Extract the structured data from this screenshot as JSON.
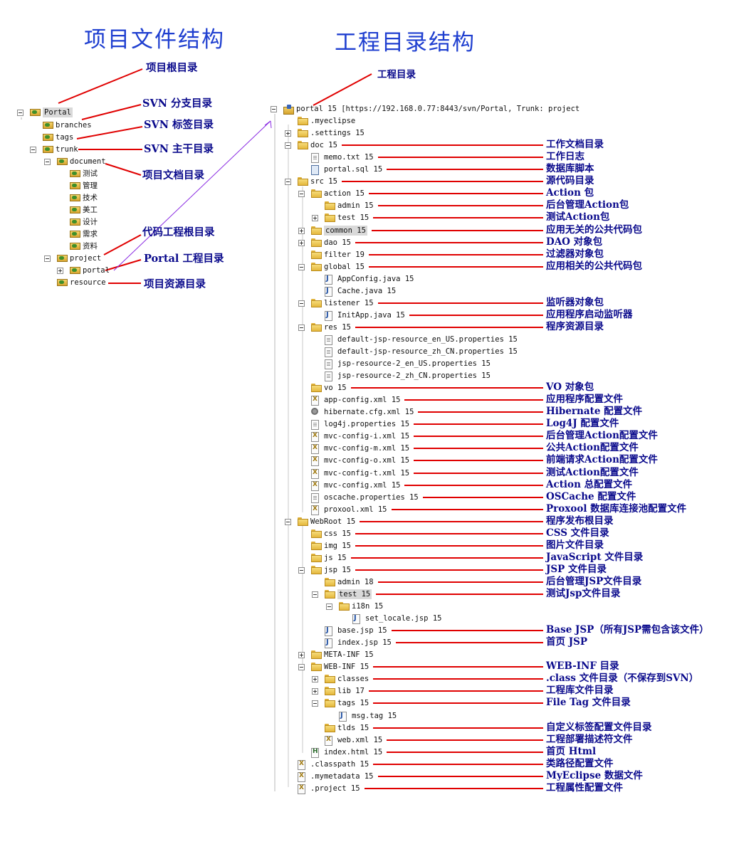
{
  "headings": {
    "left": "项目文件结构",
    "right": "工程目录结构"
  },
  "colors": {
    "heading": "#1f3fd0",
    "annotation": "#0a0a8c",
    "pointer_line": "#e00000",
    "purple_arrow": "#8a2be2"
  },
  "left_tree": {
    "nodes": [
      {
        "label": "Portal",
        "icon": "svn-folder-icon",
        "toggle": "minus",
        "highlight": true
      },
      {
        "label": "branches",
        "icon": "svn-folder-icon"
      },
      {
        "label": "tags",
        "icon": "svn-folder-icon"
      },
      {
        "label": "trunk",
        "icon": "svn-folder-icon",
        "toggle": "minus"
      },
      {
        "label": "document",
        "icon": "svn-folder-icon",
        "toggle": "minus"
      },
      {
        "label": "测试",
        "icon": "svn-folder-icon"
      },
      {
        "label": "管理",
        "icon": "svn-folder-icon"
      },
      {
        "label": "技术",
        "icon": "svn-folder-icon"
      },
      {
        "label": "美工",
        "icon": "svn-folder-icon"
      },
      {
        "label": "设计",
        "icon": "svn-folder-icon"
      },
      {
        "label": "需求",
        "icon": "svn-folder-icon"
      },
      {
        "label": "资料",
        "icon": "svn-folder-icon"
      },
      {
        "label": "project",
        "icon": "svn-folder-icon",
        "toggle": "minus"
      },
      {
        "label": "portal",
        "icon": "svn-folder-icon",
        "toggle": "plus"
      },
      {
        "label": "resource",
        "icon": "svn-folder-icon"
      }
    ],
    "annotations": [
      {
        "text": "项目根目录"
      },
      {
        "text": "SVN 分支目录"
      },
      {
        "text": "SVN 标签目录"
      },
      {
        "text": "SVN 主干目录"
      },
      {
        "text": "项目文档目录"
      },
      {
        "text": "代码工程根目录"
      },
      {
        "text": "Portal 工程目录"
      },
      {
        "text": "项目资源目录"
      }
    ]
  },
  "right_tree": {
    "top_annotation": "工程目录",
    "nodes": [
      {
        "label": "portal 15 [https://192.168.0.77:8443/svn/Portal, Trunk: project",
        "icon": "project-icon",
        "toggle": "minus"
      },
      {
        "label": ".myeclipse",
        "icon": "folder-icon"
      },
      {
        "label": ".settings 15",
        "icon": "folder-icon",
        "toggle": "plus"
      },
      {
        "label": "doc 15",
        "icon": "folder-icon",
        "toggle": "minus",
        "note": "工作文档目录"
      },
      {
        "label": "memo.txt 15",
        "icon": "file-icon",
        "note": "工作日志"
      },
      {
        "label": "portal.sql 15",
        "icon": "database-file-icon",
        "note": "数据库脚本"
      },
      {
        "label": "src 15",
        "icon": "source-folder-icon",
        "toggle": "minus",
        "note": "源代码目录"
      },
      {
        "label": "action 15",
        "icon": "folder-icon",
        "toggle": "minus",
        "note": "Action 包"
      },
      {
        "label": "admin 15",
        "icon": "folder-icon",
        "note": "后台管理Action包"
      },
      {
        "label": "test 15",
        "icon": "folder-icon",
        "toggle": "plus",
        "note": "测试Action包"
      },
      {
        "label": "common 15",
        "icon": "folder-icon",
        "toggle": "plus",
        "highlight": true,
        "note": "应用无关的公共代码包"
      },
      {
        "label": "dao 15",
        "icon": "folder-icon",
        "toggle": "plus",
        "note": "DAO 对象包"
      },
      {
        "label": "filter 19",
        "icon": "folder-icon",
        "note": "过滤器对象包"
      },
      {
        "label": "global 15",
        "icon": "folder-icon",
        "toggle": "minus",
        "note": "应用相关的公共代码包"
      },
      {
        "label": "AppConfig.java 15",
        "icon": "java-file-icon"
      },
      {
        "label": "Cache.java 15",
        "icon": "java-file-icon"
      },
      {
        "label": "listener 15",
        "icon": "folder-icon",
        "toggle": "minus",
        "note": "监听器对象包"
      },
      {
        "label": "InitApp.java 15",
        "icon": "java-file-icon",
        "note": "应用程序启动监听器"
      },
      {
        "label": "res 15",
        "icon": "folder-icon",
        "toggle": "minus",
        "note": "程序资源目录"
      },
      {
        "label": "default-jsp-resource_en_US.properties 15",
        "icon": "file-icon"
      },
      {
        "label": "default-jsp-resource_zh_CN.properties 15",
        "icon": "file-icon"
      },
      {
        "label": "jsp-resource-2_en_US.properties 15",
        "icon": "file-icon"
      },
      {
        "label": "jsp-resource-2_zh_CN.properties 15",
        "icon": "file-icon"
      },
      {
        "label": "vo 15",
        "icon": "folder-icon",
        "note": "VO 对象包"
      },
      {
        "label": "app-config.xml 15",
        "icon": "xml-file-icon",
        "note": "应用程序配置文件"
      },
      {
        "label": "hibernate.cfg.xml 15",
        "icon": "gear-file-icon",
        "note": "Hibernate 配置文件"
      },
      {
        "label": "log4j.properties 15",
        "icon": "file-icon",
        "note": "Log4J 配置文件"
      },
      {
        "label": "mvc-config-i.xml 15",
        "icon": "xml-file-icon",
        "note": "后台管理Action配置文件"
      },
      {
        "label": "mvc-config-m.xml 15",
        "icon": "xml-file-icon",
        "note": "公共Action配置文件"
      },
      {
        "label": "mvc-config-o.xml 15",
        "icon": "xml-file-icon",
        "note": "前端请求Action配置文件"
      },
      {
        "label": "mvc-config-t.xml 15",
        "icon": "xml-file-icon",
        "note": "测试Action配置文件"
      },
      {
        "label": "mvc-config.xml 15",
        "icon": "xml-file-icon",
        "note": "Action 总配置文件"
      },
      {
        "label": "oscache.properties 15",
        "icon": "file-icon",
        "note": "OSCache 配置文件"
      },
      {
        "label": "proxool.xml 15",
        "icon": "xml-file-icon",
        "note": "Proxool 数据库连接池配置文件"
      },
      {
        "label": "WebRoot 15",
        "icon": "folder-icon",
        "toggle": "minus",
        "note": "程序发布根目录"
      },
      {
        "label": "css 15",
        "icon": "folder-icon",
        "note": "CSS 文件目录"
      },
      {
        "label": "img 15",
        "icon": "folder-icon",
        "note": "图片文件目录"
      },
      {
        "label": "js 15",
        "icon": "folder-icon",
        "note": "JavaScript 文件目录"
      },
      {
        "label": "jsp 15",
        "icon": "folder-icon",
        "toggle": "minus",
        "note": "JSP 文件目录"
      },
      {
        "label": "admin 18",
        "icon": "folder-icon",
        "note": "后台管理JSP文件目录"
      },
      {
        "label": "test 15",
        "icon": "folder-icon",
        "toggle": "minus",
        "highlight": true,
        "note": "测试Jsp文件目录"
      },
      {
        "label": "i18n 15",
        "icon": "folder-icon",
        "toggle": "minus"
      },
      {
        "label": "set_locale.jsp 15",
        "icon": "jsp-file-icon"
      },
      {
        "label": "base.jsp 15",
        "icon": "jsp-file-icon",
        "note": "Base JSP（所有JSP需包含该文件）"
      },
      {
        "label": "index.jsp 15",
        "icon": "jsp-file-icon",
        "note": "首页 JSP"
      },
      {
        "label": "META-INF 15",
        "icon": "folder-icon",
        "toggle": "plus"
      },
      {
        "label": "WEB-INF 15",
        "icon": "folder-icon",
        "toggle": "minus",
        "note": "WEB-INF 目录"
      },
      {
        "label": "classes",
        "icon": "folder-icon",
        "toggle": "plus",
        "note": ".class 文件目录（不保存到SVN）"
      },
      {
        "label": "lib 17",
        "icon": "folder-icon",
        "toggle": "plus",
        "note": "工程库文件目录"
      },
      {
        "label": "tags 15",
        "icon": "folder-icon",
        "toggle": "minus",
        "note": "File Tag 文件目录"
      },
      {
        "label": "msg.tag 15",
        "icon": "jsp-file-icon"
      },
      {
        "label": "tlds 15",
        "icon": "folder-icon",
        "note": "自定义标签配置文件目录"
      },
      {
        "label": "web.xml 15",
        "icon": "xml-file-icon",
        "note": "工程部署描述符文件"
      },
      {
        "label": "index.html 15",
        "icon": "html-file-icon",
        "note": "首页 Html"
      },
      {
        "label": ".classpath 15",
        "icon": "xml-file-icon",
        "note": "类路径配置文件"
      },
      {
        "label": ".mymetadata 15",
        "icon": "xml-file-icon",
        "note": "MyEclipse 数据文件"
      },
      {
        "label": ".project 15",
        "icon": "xml-file-icon",
        "note": "工程属性配置文件"
      }
    ]
  }
}
